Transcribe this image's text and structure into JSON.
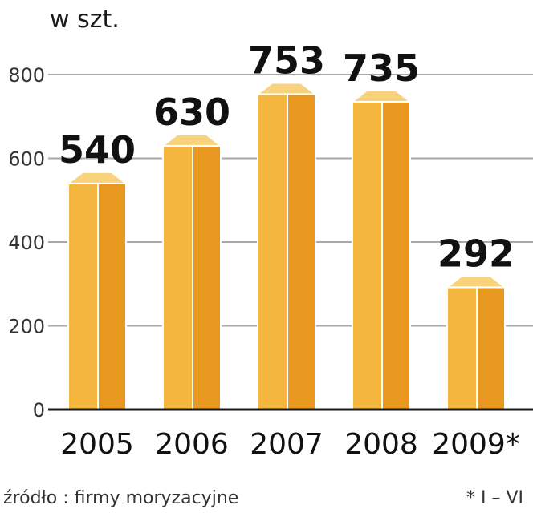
{
  "chart_data": {
    "type": "bar",
    "ylabel": "w szt.",
    "categories": [
      "2005",
      "2006",
      "2007",
      "2008",
      "2009*"
    ],
    "values": [
      540,
      630,
      753,
      735,
      292
    ],
    "ylim": [
      0,
      800
    ],
    "yticks": [
      0,
      200,
      400,
      600,
      800
    ],
    "grid": true,
    "colors": {
      "front": "#f4b63e",
      "side": "#e8981f",
      "top": "#f9d27c",
      "grid": "#a8a8a8",
      "baseline": "#1a1a1a"
    }
  },
  "footer": {
    "source": "źródło : firmy moryzacyjne",
    "note": "* I – VI"
  }
}
